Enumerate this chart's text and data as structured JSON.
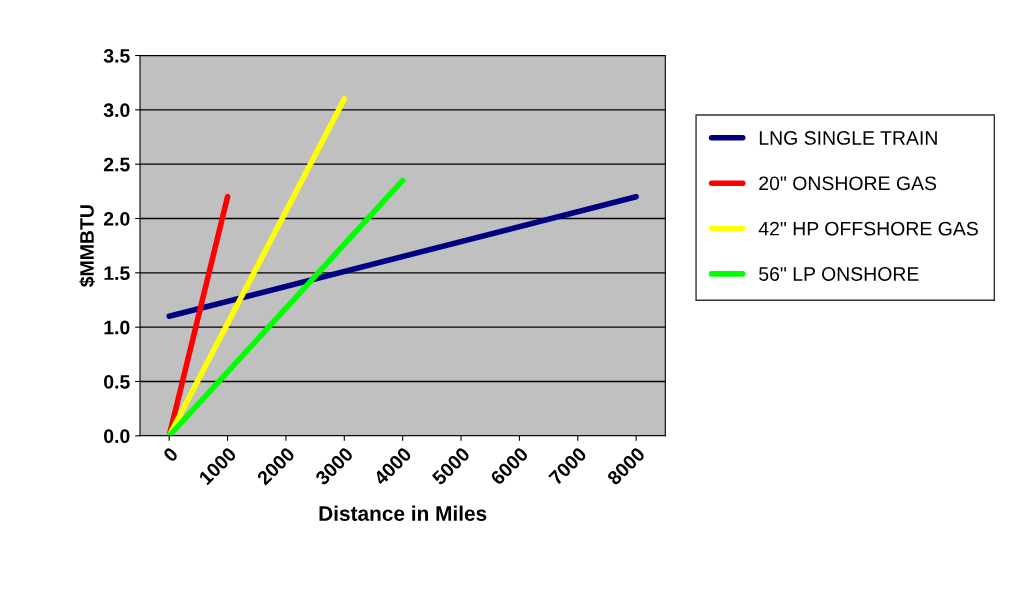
{
  "chart_data": {
    "type": "line",
    "xlabel": "Distance in Miles",
    "ylabel": "$MMBTU",
    "xlim": [
      -500,
      8500
    ],
    "xticks": [
      0,
      1000,
      2000,
      3000,
      4000,
      5000,
      6000,
      7000,
      8000
    ],
    "ylim": [
      0,
      3.5
    ],
    "yticks": [
      {
        "value": 0,
        "label": "0.0"
      },
      {
        "value": 0.5,
        "label": "0.5"
      },
      {
        "value": 1,
        "label": "1.0"
      },
      {
        "value": 1.5,
        "label": "1.5"
      },
      {
        "value": 2,
        "label": "2.0"
      },
      {
        "value": 2.5,
        "label": "2.5"
      },
      {
        "value": 3,
        "label": "3.0"
      },
      {
        "value": 3.5,
        "label": "3.5"
      }
    ],
    "grid": "y",
    "legend": "right",
    "marker": "none",
    "line_style": "solid",
    "series": [
      {
        "name": "LNG SINGLE TRAIN",
        "color": "#000080",
        "x": [
          0,
          8000
        ],
        "values": [
          1.1,
          2.2
        ]
      },
      {
        "name": "20\" ONSHORE GAS",
        "color": "#ff0000",
        "x": [
          0,
          1000
        ],
        "values": [
          0,
          2.2
        ]
      },
      {
        "name": "42\" HP OFFSHORE GAS",
        "color": "#ffff00",
        "x": [
          0,
          3000
        ],
        "values": [
          0,
          3.1
        ]
      },
      {
        "name": "56\" LP ONSHORE",
        "color": "#00ff00",
        "x": [
          0,
          4000
        ],
        "values": [
          0,
          2.35
        ]
      }
    ]
  }
}
